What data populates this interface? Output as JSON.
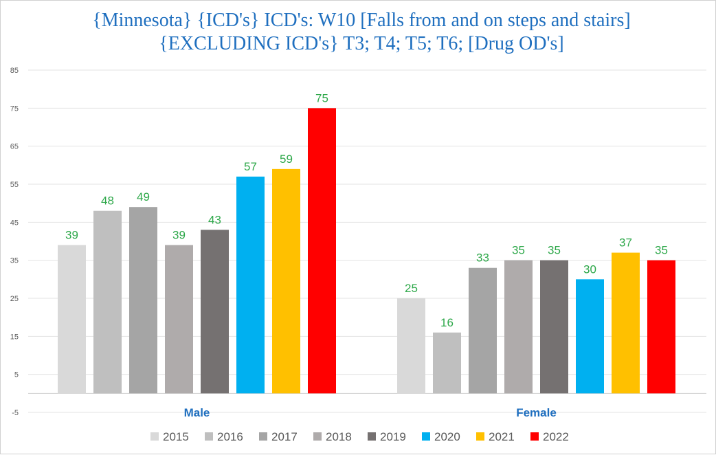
{
  "chart_data": {
    "type": "bar",
    "title": "{Minnesota}  {ICD's}  ICD's: W10 [Falls from and on steps and stairs] {EXCLUDING ICD's} T3; T4; T5; T6; [Drug OD's]",
    "categories": [
      "Male",
      "Female"
    ],
    "series": [
      {
        "name": "2015",
        "color": "#d9d9d9",
        "values": [
          39,
          25
        ]
      },
      {
        "name": "2016",
        "color": "#bfbfbf",
        "values": [
          48,
          16
        ]
      },
      {
        "name": "2017",
        "color": "#a5a5a5",
        "values": [
          49,
          33
        ]
      },
      {
        "name": "2018",
        "color": "#afabab",
        "values": [
          39,
          35
        ]
      },
      {
        "name": "2019",
        "color": "#757171",
        "values": [
          43,
          35
        ]
      },
      {
        "name": "2020",
        "color": "#00b0f0",
        "values": [
          57,
          30
        ]
      },
      {
        "name": "2021",
        "color": "#ffc000",
        "values": [
          59,
          37
        ]
      },
      {
        "name": "2022",
        "color": "#ff0000",
        "values": [
          75,
          35
        ]
      }
    ],
    "yticks": [
      "85",
      "75",
      "65",
      "55",
      "45",
      "35",
      "25",
      "15",
      "5",
      "-5"
    ],
    "ylim": [
      -5,
      85
    ],
    "xlabel": "",
    "ylabel": "",
    "legend_position": "bottom",
    "data_label_color": "#2ea84a",
    "grid": true
  }
}
